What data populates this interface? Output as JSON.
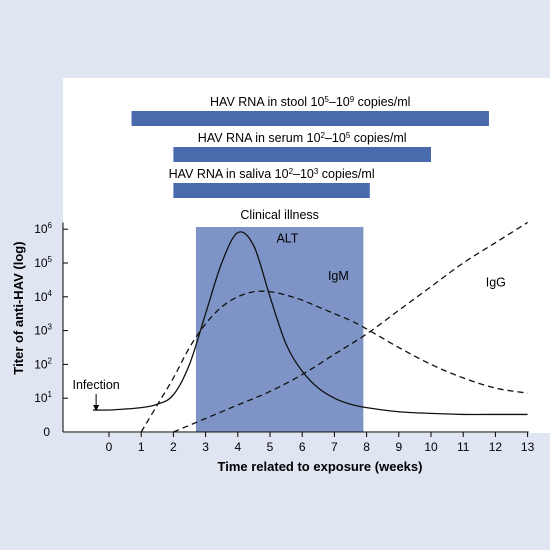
{
  "colors": {
    "background": "#dfe6f1",
    "plot_area": "#ffffff",
    "bar": "#4a6aae",
    "clinical_illness": "#7e94c6",
    "line": "#111111"
  },
  "chart_data": {
    "type": "line",
    "title": "",
    "xlabel": "Time related to exposure (weeks)",
    "ylabel": "Titer of anti-HAV (log)",
    "xlim": [
      -1.3,
      13
    ],
    "ylim": [
      0,
      6.2
    ],
    "x_ticks": [
      "0",
      "1",
      "2",
      "3",
      "4",
      "5",
      "6",
      "7",
      "8",
      "9",
      "10",
      "11",
      "12",
      "13"
    ],
    "y_ticks": [
      {
        "base": "0",
        "exp": ""
      },
      {
        "base": "10",
        "exp": "1"
      },
      {
        "base": "10",
        "exp": "2"
      },
      {
        "base": "10",
        "exp": "3"
      },
      {
        "base": "10",
        "exp": "4"
      },
      {
        "base": "10",
        "exp": "5"
      },
      {
        "base": "10",
        "exp": "6"
      }
    ],
    "grid": false,
    "legend": "none",
    "bars": [
      {
        "label": {
          "pre": "HAV RNA in stool 10",
          "e1": "5",
          "mid": "–10",
          "e2": "9",
          "post": " copies/ml"
        },
        "start": 0.7,
        "end": 11.8
      },
      {
        "label": {
          "pre": "HAV RNA in serum 10",
          "e1": "2",
          "mid": "–10",
          "e2": "5",
          "post": " copies/ml"
        },
        "start": 2.0,
        "end": 10.0
      },
      {
        "label": {
          "pre": "HAV RNA in saliva 10",
          "e1": "2",
          "mid": "–10",
          "e2": "3",
          "post": " copies/ml"
        },
        "start": 2.0,
        "end": 8.1
      }
    ],
    "clinical_illness": {
      "label": "Clinical illness",
      "start": 2.7,
      "end": 7.9
    },
    "infection": {
      "label": "Infection",
      "x": -0.4
    },
    "series": [
      {
        "name": "ALT",
        "style": "solid",
        "x": [
          -0.5,
          0,
          0.5,
          1,
          1.5,
          2,
          2.5,
          3,
          3.5,
          4,
          4.5,
          5,
          5.5,
          6,
          6.5,
          7,
          7.5,
          8,
          9,
          10,
          11,
          12,
          13
        ],
        "y": [
          0.65,
          0.65,
          0.68,
          0.72,
          0.82,
          1.1,
          2.0,
          3.5,
          5.0,
          5.9,
          5.5,
          4.0,
          2.6,
          1.8,
          1.3,
          1.0,
          0.82,
          0.72,
          0.6,
          0.55,
          0.52,
          0.52,
          0.52
        ]
      },
      {
        "name": "IgM",
        "style": "dashed",
        "x": [
          1.0,
          1.5,
          2.0,
          2.5,
          3.0,
          3.5,
          4.0,
          4.5,
          5.0,
          5.5,
          6.0,
          6.5,
          7.0,
          7.5,
          8.0,
          9.0,
          10.0,
          11.0,
          12.0,
          13.0
        ],
        "y": [
          0,
          0.8,
          1.6,
          2.5,
          3.2,
          3.7,
          4.0,
          4.15,
          4.15,
          4.05,
          3.9,
          3.7,
          3.5,
          3.3,
          3.05,
          2.5,
          2.0,
          1.6,
          1.3,
          1.15
        ]
      },
      {
        "name": "IgG",
        "style": "dashed",
        "x": [
          2.0,
          3.0,
          4.0,
          5.0,
          6.0,
          7.0,
          8.0,
          9.0,
          10.0,
          11.0,
          12.0,
          13.0
        ],
        "y": [
          0,
          0.4,
          0.8,
          1.2,
          1.7,
          2.3,
          2.9,
          3.6,
          4.3,
          5.0,
          5.6,
          6.2
        ]
      }
    ]
  }
}
